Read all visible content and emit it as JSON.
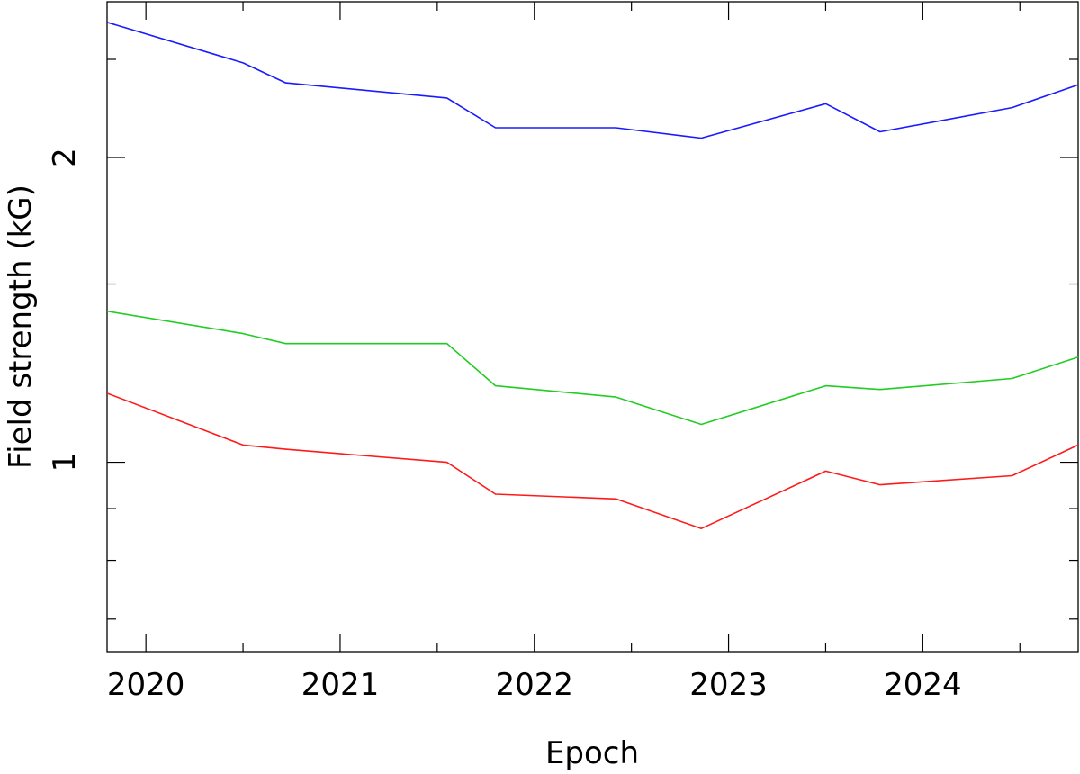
{
  "chart_data": {
    "type": "line",
    "xlabel": "Epoch",
    "ylabel": "Field strength (kG)",
    "xlim": [
      2019.8,
      2024.8
    ],
    "ylim": [
      0.65,
      2.85
    ],
    "y_scale": "log",
    "x_ticks": [
      2020,
      2021,
      2022,
      2023,
      2024
    ],
    "x_tick_labels": [
      "2020",
      "2021",
      "2022",
      "2023",
      "2024"
    ],
    "y_ticks": [
      1,
      2
    ],
    "y_tick_labels": [
      "1",
      "2"
    ],
    "grid": false,
    "series": [
      {
        "color": "#1a1aff",
        "x": [
          2019.8,
          2020.5,
          2020.72,
          2021.55,
          2021.8,
          2022.42,
          2022.86,
          2023.5,
          2023.78,
          2024.46,
          2024.8
        ],
        "y": [
          2.72,
          2.48,
          2.37,
          2.29,
          2.14,
          2.14,
          2.09,
          2.26,
          2.12,
          2.24,
          2.36
        ]
      },
      {
        "color": "#22cc22",
        "x": [
          2019.8,
          2020.5,
          2020.72,
          2021.55,
          2021.8,
          2022.42,
          2022.86,
          2023.5,
          2023.78,
          2024.46,
          2024.8
        ],
        "y": [
          1.41,
          1.34,
          1.31,
          1.31,
          1.19,
          1.16,
          1.09,
          1.19,
          1.18,
          1.21,
          1.27
        ]
      },
      {
        "color": "#ff1a1a",
        "x": [
          2019.8,
          2020.5,
          2020.72,
          2021.55,
          2021.8,
          2022.42,
          2022.86,
          2023.5,
          2023.78,
          2024.46,
          2024.8
        ],
        "y": [
          1.17,
          1.04,
          1.03,
          1.0,
          0.93,
          0.92,
          0.86,
          0.98,
          0.95,
          0.97,
          1.04
        ]
      }
    ]
  }
}
